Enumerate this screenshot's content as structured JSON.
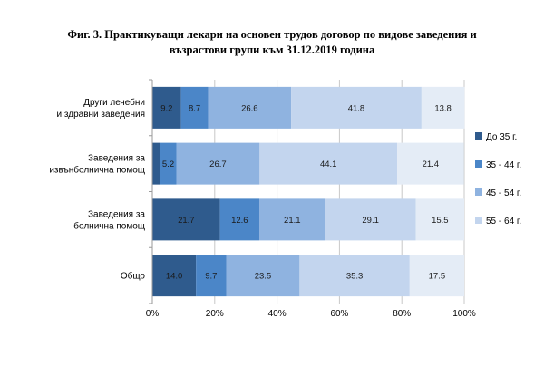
{
  "chart_data": {
    "type": "bar",
    "orientation": "horizontal",
    "stacked": true,
    "title": [
      "Фиг. 3. Практикуващи лекари на основен трудов договор по видове заведения и",
      "възрастови групи към 31.12.2019 година"
    ],
    "categories": [
      [
        "Други лечебни",
        "и здравни заведения"
      ],
      [
        "Заведения за",
        "извънболнична помощ"
      ],
      [
        "Заведения за",
        "болнична помощ"
      ],
      [
        "Общо"
      ]
    ],
    "series": [
      {
        "name": "До 35 г.",
        "color": "#2f5b8d",
        "values": [
          9.2,
          2.5,
          21.7,
          14.0
        ],
        "labels": [
          "9.2",
          "",
          "21.7",
          "14.0"
        ]
      },
      {
        "name": "35 - 44 г.",
        "color": "#4b86c8",
        "values": [
          8.7,
          5.2,
          12.6,
          9.7
        ],
        "labels": [
          "8.7",
          "5.2",
          "12.6",
          "9.7"
        ]
      },
      {
        "name": "45 - 54 г.",
        "color": "#8fb3e0",
        "values": [
          26.6,
          26.7,
          21.1,
          23.5
        ],
        "labels": [
          "26.6",
          "26.7",
          "21.1",
          "23.5"
        ]
      },
      {
        "name": "55 - 64 г.",
        "color": "#c3d5ee",
        "values": [
          41.8,
          44.1,
          29.1,
          35.3
        ],
        "labels": [
          "41.8",
          "44.1",
          "29.1",
          "35.3"
        ]
      },
      {
        "color": "#e4ecf6",
        "values": [
          13.8,
          21.4,
          15.5,
          17.5
        ],
        "labels": [
          "13.8",
          "21.4",
          "15.5",
          "17.5"
        ]
      }
    ],
    "xlim": [
      0,
      100
    ],
    "x_ticks": [
      "0%",
      "20%",
      "40%",
      "60%",
      "80%",
      "100%"
    ],
    "grid": true,
    "legend_position": "right"
  }
}
